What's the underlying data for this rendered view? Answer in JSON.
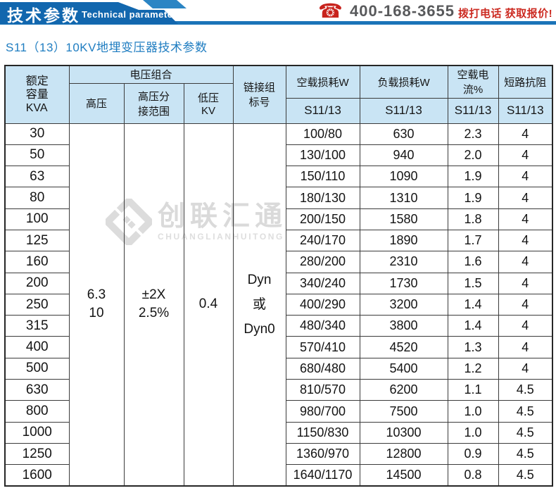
{
  "banner": {
    "title_cn": "技术参数",
    "title_en": "Technical parameter",
    "phone_icon": "telephone-icon",
    "phone": "400-168-3655",
    "cta": "拨打电话 获取报价!"
  },
  "page_title": "S11（13）10KV地埋变压器技术参数",
  "watermark": {
    "name_cn": "创联汇通",
    "name_en": "CHUANGLIANHUITONG"
  },
  "colors": {
    "banner_blue": "#1267ae",
    "banner_stripe_blue": "#2b85c4",
    "rule_blue": "#1b74b8",
    "title_blue": "#1f7dc1",
    "header_cell_blue": "#c9e4f4",
    "cta_red": "#cc2a21",
    "phone_gray": "#58595b",
    "border_dark": "#3b3b3b",
    "watermark_gray": "#dadada"
  },
  "table": {
    "header": {
      "capacity": "额定\n容量\nKVA",
      "voltage_group": "电压组合",
      "high_voltage": "高压",
      "tap_range": "高压分\n接范围",
      "low_voltage": "低压\nKV",
      "vector_group": "链接组\n标号",
      "no_load_loss": "空载损耗W",
      "load_loss": "负载损耗W",
      "no_load_current": "空载电流%",
      "impedance": "短路抗阻",
      "model": "S11/13"
    },
    "merged": {
      "high_voltage": "6.3\n10",
      "tap_range": "±2X\n2.5%",
      "low_voltage": "0.4",
      "vector_group": "Dyn\n或\nDyn0"
    },
    "rows": [
      [
        "30",
        "100/80",
        "630",
        "2.3",
        "4"
      ],
      [
        "50",
        "130/100",
        "940",
        "2.0",
        "4"
      ],
      [
        "63",
        "150/110",
        "1090",
        "1.9",
        "4"
      ],
      [
        "80",
        "180/130",
        "1310",
        "1.9",
        "4"
      ],
      [
        "100",
        "200/150",
        "1580",
        "1.8",
        "4"
      ],
      [
        "125",
        "240/170",
        "1890",
        "1.7",
        "4"
      ],
      [
        "160",
        "280/200",
        "2310",
        "1.6",
        "4"
      ],
      [
        "200",
        "340/240",
        "1730",
        "1.5",
        "4"
      ],
      [
        "250",
        "400/290",
        "3200",
        "1.4",
        "4"
      ],
      [
        "315",
        "480/340",
        "3800",
        "1.4",
        "4"
      ],
      [
        "400",
        "570/410",
        "4520",
        "1.3",
        "4"
      ],
      [
        "500",
        "680/480",
        "5400",
        "1.2",
        "4"
      ],
      [
        "630",
        "810/570",
        "6200",
        "1.1",
        "4.5"
      ],
      [
        "800",
        "980/700",
        "7500",
        "1.0",
        "4.5"
      ],
      [
        "1000",
        "1150/830",
        "10300",
        "1.0",
        "4.5"
      ],
      [
        "1250",
        "1360/970",
        "12800",
        "0.9",
        "4.5"
      ],
      [
        "1600",
        "1640/1170",
        "14500",
        "0.8",
        "4.5"
      ]
    ]
  }
}
